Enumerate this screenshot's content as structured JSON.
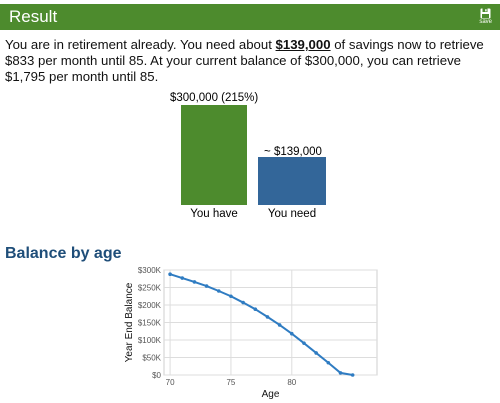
{
  "header": {
    "title": "Result",
    "save_label": "save",
    "save_icon": "floppy-disk-icon",
    "bar_color": "#4d8b2d"
  },
  "summary": {
    "part1": "You are in retirement already. You need about ",
    "needed": "$139,000",
    "part2": " of savings now to retrieve $833 per month until 85. At your current balance of $300,000, you can retrieve $1,795 per month until 85."
  },
  "comparison": {
    "have_value_label": "$300,000 (215%)",
    "need_value_label": "~ $139,000",
    "have_caption": "You have",
    "need_caption": "You need",
    "have_color": "#4d8b2d",
    "need_color": "#336699",
    "have_amount": 300000,
    "need_amount": 139000
  },
  "balance_section": {
    "title": "Balance by age"
  },
  "chart_data": {
    "type": "line",
    "xlabel": "Age",
    "ylabel": "Year End Balance",
    "xlim": [
      69.5,
      87
    ],
    "ylim": [
      0,
      300000
    ],
    "xticks": [
      70,
      75,
      80
    ],
    "xtick_labels": [
      "70",
      "75",
      "80"
    ],
    "yticks": [
      0,
      50000,
      100000,
      150000,
      200000,
      250000,
      300000
    ],
    "ytick_labels": [
      "$0",
      "$50K",
      "$100K",
      "$150K",
      "$200K",
      "$250K",
      "$300K"
    ],
    "grid": true,
    "line_color": "#2f7cc2",
    "x": [
      70,
      71,
      72,
      73,
      74,
      75,
      76,
      77,
      78,
      79,
      80,
      81,
      82,
      83,
      84,
      85
    ],
    "values": [
      288000,
      277000,
      266000,
      254000,
      240000,
      225000,
      207000,
      188000,
      166000,
      143000,
      118000,
      91000,
      63000,
      35000,
      6000,
      0
    ]
  }
}
